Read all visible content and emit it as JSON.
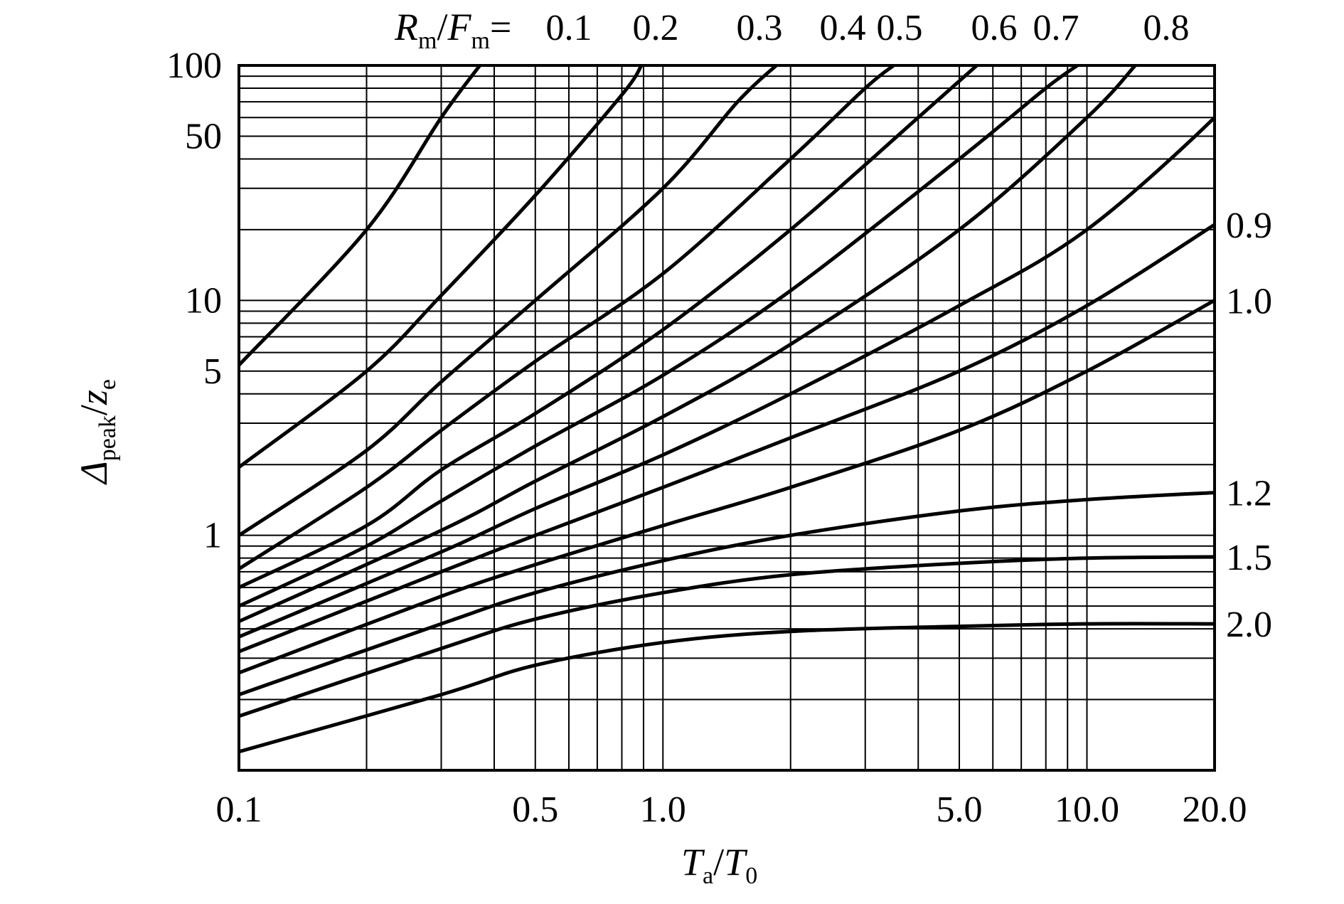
{
  "chart_data": {
    "type": "line",
    "x_scale": "log",
    "y_scale": "log",
    "xlim": [
      0.1,
      20.0
    ],
    "ylim": [
      0.1,
      100
    ],
    "grid": true,
    "x_tick_labels": [
      "0.1",
      "0.5",
      "1.0",
      "5.0",
      "10.0",
      "20.0"
    ],
    "y_tick_labels": [
      "1",
      "5",
      "10",
      "50",
      "100"
    ],
    "xlabel": {
      "main1": "T",
      "sub1": "a",
      "slash": "/",
      "main2": "T",
      "sub2": "0"
    },
    "ylabel": {
      "main1": "Δ",
      "sub1": "peak",
      "slash": "/",
      "main2": "z",
      "sub2": "e"
    },
    "legend_title": {
      "main1": "R",
      "sub1": "m",
      "slash": "/",
      "main2": "F",
      "sub2": "m",
      "eq": "="
    },
    "series": [
      {
        "name": "0.1",
        "label_pos": "top",
        "points": [
          [
            0.1,
            5.3
          ],
          [
            0.2,
            20
          ],
          [
            0.3,
            60
          ],
          [
            0.37,
            100
          ]
        ]
      },
      {
        "name": "0.2",
        "label_pos": "top",
        "points": [
          [
            0.1,
            1.95
          ],
          [
            0.2,
            5.0
          ],
          [
            0.3,
            10.5
          ],
          [
            0.5,
            28
          ],
          [
            0.8,
            75
          ],
          [
            0.89,
            100
          ]
        ]
      },
      {
        "name": "0.3",
        "label_pos": "top",
        "points": [
          [
            0.1,
            1.0
          ],
          [
            0.2,
            2.3
          ],
          [
            0.3,
            4.5
          ],
          [
            0.5,
            10.0
          ],
          [
            1.0,
            30
          ],
          [
            1.5,
            70
          ],
          [
            1.85,
            100
          ]
        ]
      },
      {
        "name": "0.4",
        "label_pos": "top",
        "points": [
          [
            0.1,
            0.72
          ],
          [
            0.2,
            1.6
          ],
          [
            0.3,
            2.8
          ],
          [
            0.5,
            5.5
          ],
          [
            1.0,
            13
          ],
          [
            2.0,
            40
          ],
          [
            3.0,
            80
          ],
          [
            3.5,
            100
          ]
        ]
      },
      {
        "name": "0.5",
        "label_pos": "top",
        "points": [
          [
            0.1,
            0.6
          ],
          [
            0.2,
            1.1
          ],
          [
            0.3,
            1.9
          ],
          [
            0.5,
            3.3
          ],
          [
            1.0,
            7.5
          ],
          [
            2.0,
            20
          ],
          [
            4.0,
            60
          ],
          [
            5.5,
            100
          ]
        ]
      },
      {
        "name": "0.6",
        "label_pos": "top",
        "points": [
          [
            0.1,
            0.5
          ],
          [
            0.2,
            0.9
          ],
          [
            0.3,
            1.4
          ],
          [
            0.5,
            2.4
          ],
          [
            1.0,
            4.8
          ],
          [
            2.0,
            11
          ],
          [
            5.0,
            40
          ],
          [
            8.0,
            80
          ],
          [
            9.5,
            100
          ]
        ]
      },
      {
        "name": "0.7",
        "label_pos": "top",
        "points": [
          [
            0.1,
            0.43
          ],
          [
            0.3,
            1.05
          ],
          [
            0.5,
            1.7
          ],
          [
            1.0,
            3.2
          ],
          [
            2.0,
            6.5
          ],
          [
            5.0,
            20
          ],
          [
            10.0,
            60
          ],
          [
            13.0,
            100
          ]
        ]
      },
      {
        "name": "0.8",
        "label_pos": "top",
        "points": [
          [
            0.1,
            0.37
          ],
          [
            0.3,
            0.85
          ],
          [
            0.5,
            1.3
          ],
          [
            1.0,
            2.2
          ],
          [
            2.0,
            4.0
          ],
          [
            5.0,
            9.5
          ],
          [
            10.0,
            20
          ],
          [
            20.0,
            60
          ],
          [
            22.0,
            80
          ]
        ]
      },
      {
        "name": "0.9",
        "label_pos": "right",
        "points": [
          [
            0.1,
            0.32
          ],
          [
            0.3,
            0.7
          ],
          [
            0.5,
            1.0
          ],
          [
            1.0,
            1.6
          ],
          [
            2.0,
            2.6
          ],
          [
            5.0,
            5.0
          ],
          [
            10.0,
            9.5
          ],
          [
            20.0,
            21
          ]
        ]
      },
      {
        "name": "1.0",
        "label_pos": "right",
        "points": [
          [
            0.1,
            0.26
          ],
          [
            0.3,
            0.55
          ],
          [
            0.5,
            0.75
          ],
          [
            1.0,
            1.1
          ],
          [
            2.0,
            1.6
          ],
          [
            5.0,
            2.8
          ],
          [
            10.0,
            5.0
          ],
          [
            20.0,
            10.0
          ]
        ]
      },
      {
        "name": "1.2",
        "label_pos": "right",
        "points": [
          [
            0.1,
            0.21
          ],
          [
            0.3,
            0.42
          ],
          [
            0.5,
            0.57
          ],
          [
            1.0,
            0.78
          ],
          [
            2.0,
            1.0
          ],
          [
            5.0,
            1.27
          ],
          [
            10.0,
            1.42
          ],
          [
            20.0,
            1.52
          ]
        ]
      },
      {
        "name": "1.5",
        "label_pos": "right",
        "points": [
          [
            0.1,
            0.17
          ],
          [
            0.3,
            0.33
          ],
          [
            0.5,
            0.44
          ],
          [
            1.0,
            0.57
          ],
          [
            2.0,
            0.68
          ],
          [
            5.0,
            0.76
          ],
          [
            10.0,
            0.8
          ],
          [
            20.0,
            0.81
          ]
        ]
      },
      {
        "name": "2.0",
        "label_pos": "right",
        "points": [
          [
            0.1,
            0.12
          ],
          [
            0.3,
            0.21
          ],
          [
            0.5,
            0.28
          ],
          [
            1.0,
            0.35
          ],
          [
            2.0,
            0.39
          ],
          [
            5.0,
            0.41
          ],
          [
            10.0,
            0.42
          ],
          [
            20.0,
            0.42
          ]
        ]
      }
    ]
  }
}
